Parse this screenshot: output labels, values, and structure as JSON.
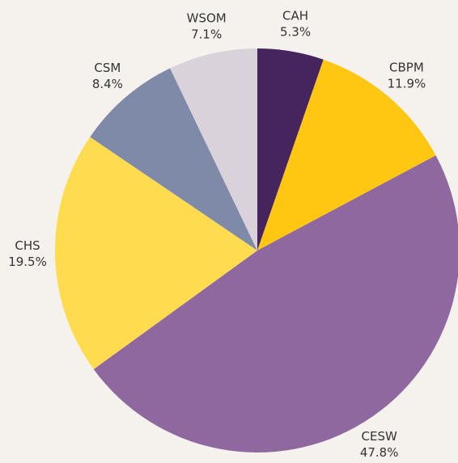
{
  "chart_data": {
    "type": "pie",
    "categories": [
      "CAH",
      "CBPM",
      "CESW",
      "CHS",
      "CSM",
      "WSOM"
    ],
    "values": [
      5.3,
      11.9,
      47.8,
      19.5,
      8.4,
      7.1
    ],
    "value_labels": [
      "5.3%",
      "11.9%",
      "47.8%",
      "19.5%",
      "8.4%",
      "7.1%"
    ],
    "colors": [
      "#46245e",
      "#ffc612",
      "#8f68a0",
      "#ffdb4f",
      "#7f8aa8",
      "#d9d2db"
    ]
  }
}
